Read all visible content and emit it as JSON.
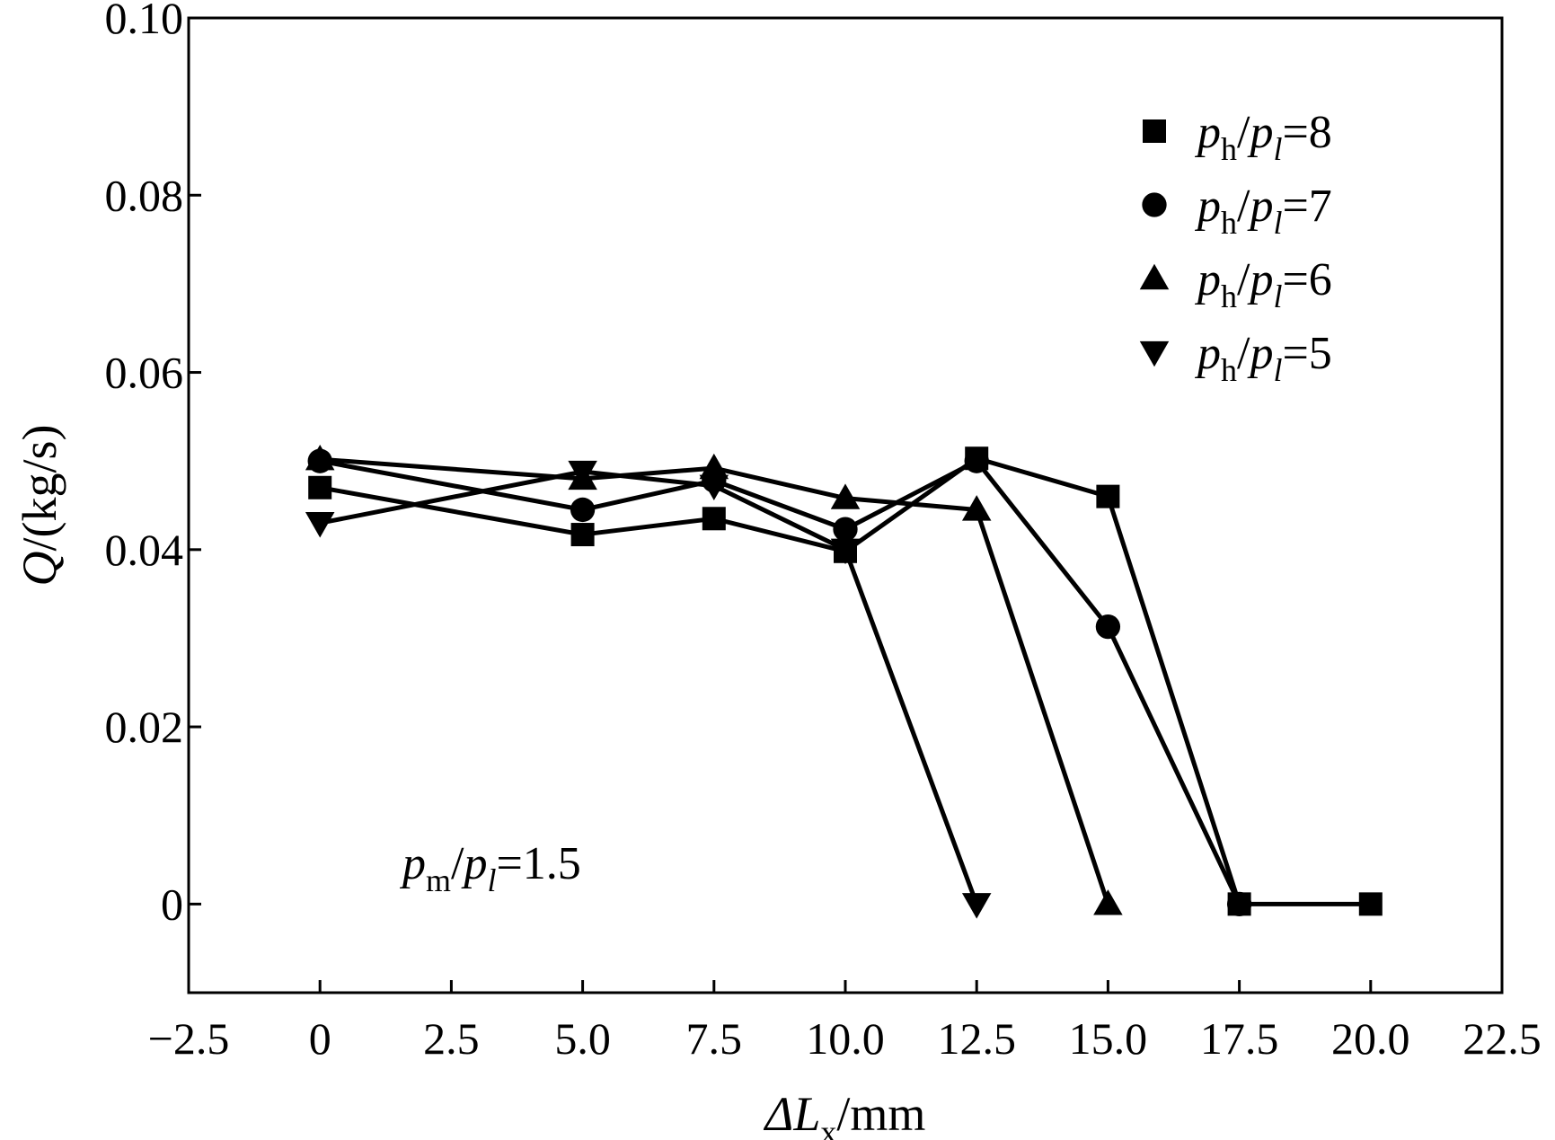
{
  "chart_data": {
    "type": "line",
    "xlabel": {
      "symbol": "ΔL",
      "sub": "x",
      "unit": "/mm"
    },
    "ylabel": {
      "symbol": "Q",
      "unit": "/(kg/s)"
    },
    "xlim": [
      -2.5,
      22.5
    ],
    "ylim": [
      -0.01,
      0.1
    ],
    "xticks": [
      -2.5,
      0,
      2.5,
      5.0,
      7.5,
      10.0,
      12.5,
      15.0,
      17.5,
      20.0,
      22.5
    ],
    "xtick_labels": [
      "−2.5",
      "0",
      "2.5",
      "5.0",
      "7.5",
      "10.0",
      "12.5",
      "15.0",
      "17.5",
      "20.0",
      "22.5"
    ],
    "yticks": [
      0,
      0.02,
      0.04,
      0.06,
      0.08,
      0.1
    ],
    "ytick_labels": [
      "0",
      "0.02",
      "0.04",
      "0.06",
      "0.08",
      "0.10"
    ],
    "grid": false,
    "legend_position": "top-right",
    "annotation": {
      "num": "p",
      "num_sub": "m",
      "den": "p",
      "den_sub": "l",
      "rest": "=1.5"
    },
    "series": [
      {
        "label": {
          "num": "p",
          "num_sub": "h",
          "den": "p",
          "den_sub": "l",
          "rest": "=8"
        },
        "marker": "square",
        "x": [
          0,
          5.0,
          7.5,
          10.0,
          12.5,
          15.0,
          17.5,
          20.0
        ],
        "y": [
          0.047,
          0.0417,
          0.0435,
          0.0398,
          0.0503,
          0.046,
          0.0,
          0.0
        ]
      },
      {
        "label": {
          "num": "p",
          "num_sub": "h",
          "den": "p",
          "den_sub": "l",
          "rest": "=7"
        },
        "marker": "circle",
        "x": [
          0,
          5.0,
          7.5,
          10.0,
          12.5,
          15.0,
          17.5
        ],
        "y": [
          0.05,
          0.0445,
          0.0478,
          0.0423,
          0.05,
          0.0313,
          0.0
        ]
      },
      {
        "label": {
          "num": "p",
          "num_sub": "h",
          "den": "p",
          "den_sub": "l",
          "rest": "=6"
        },
        "marker": "triangle-up",
        "x": [
          0,
          5.0,
          7.5,
          10.0,
          12.5,
          15.0
        ],
        "y": [
          0.0502,
          0.048,
          0.0492,
          0.0458,
          0.0445,
          0.0
        ]
      },
      {
        "label": {
          "num": "p",
          "num_sub": "h",
          "den": "p",
          "den_sub": "l",
          "rest": "=5"
        },
        "marker": "triangle-down",
        "x": [
          0,
          5.0,
          7.5,
          10.0,
          12.5
        ],
        "y": [
          0.043,
          0.0488,
          0.0472,
          0.04,
          0.0
        ]
      }
    ]
  }
}
